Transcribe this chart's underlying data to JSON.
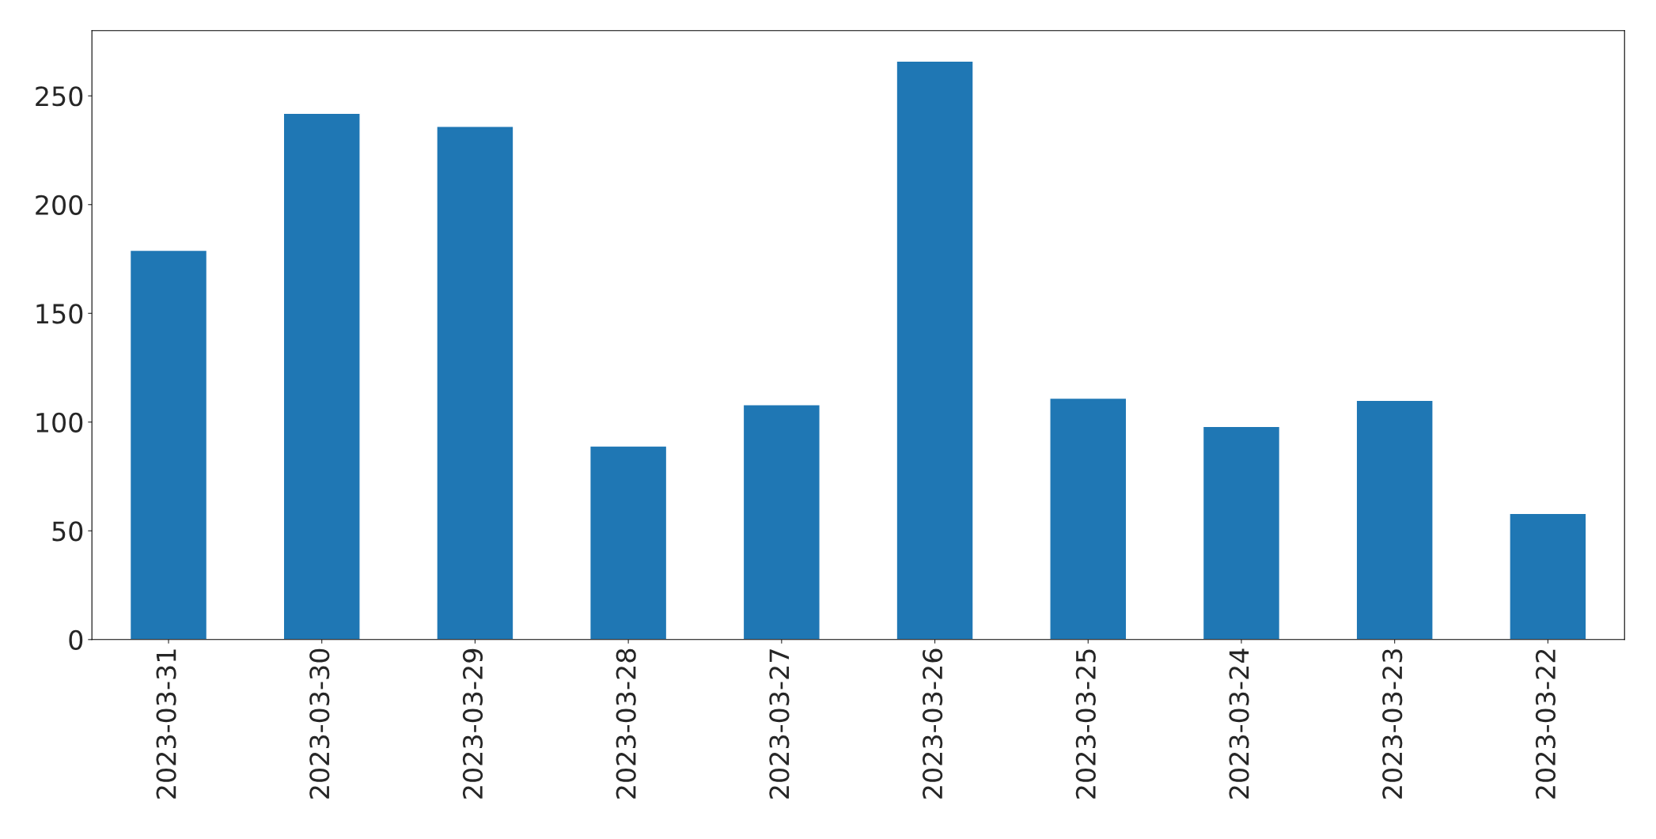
{
  "chart_data": {
    "type": "bar",
    "categories": [
      "2023-03-31",
      "2023-03-30",
      "2023-03-29",
      "2023-03-28",
      "2023-03-27",
      "2023-03-26",
      "2023-03-25",
      "2023-03-24",
      "2023-03-23",
      "2023-03-22"
    ],
    "values": [
      179,
      242,
      236,
      89,
      108,
      266,
      111,
      98,
      110,
      58
    ],
    "color": "#1f77b4",
    "ylim": [
      0,
      280
    ],
    "yticks": [
      0,
      50,
      100,
      150,
      200,
      250
    ],
    "grid": false
  }
}
